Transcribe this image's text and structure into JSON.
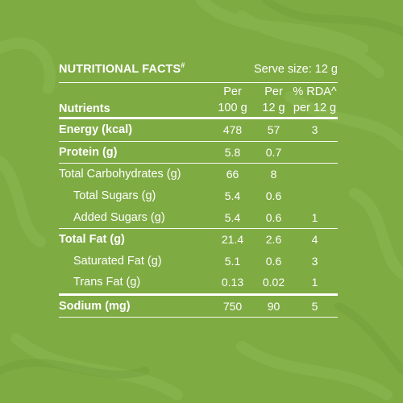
{
  "heading": "NUTRITIONAL FACTS",
  "heading_mark": "#",
  "serve_size": "Serve size: 12 g",
  "columns": {
    "nutrients": "Nutrients",
    "per100_l1": "Per",
    "per100_l2": "100 g",
    "per12_l1": "Per",
    "per12_l2": "12 g",
    "rda_l1": "% RDA^",
    "rda_l2": "per 12 g"
  },
  "rows": [
    {
      "name": "Energy (kcal)",
      "per100": "478",
      "per12": "57",
      "rda": "3"
    },
    {
      "name": "Protein (g)",
      "per100": "5.8",
      "per12": "0.7",
      "rda": ""
    },
    {
      "name": "Total Carbohydrates (g)",
      "per100": "66",
      "per12": "8",
      "rda": ""
    },
    {
      "name": "Total Sugars (g)",
      "per100": "5.4",
      "per12": "0.6",
      "rda": ""
    },
    {
      "name": "Added Sugars (g)",
      "per100": "5.4",
      "per12": "0.6",
      "rda": "1"
    },
    {
      "name": "Total Fat (g)",
      "per100": "21.4",
      "per12": "2.6",
      "rda": "4"
    },
    {
      "name": "Saturated Fat (g)",
      "per100": "5.1",
      "per12": "0.6",
      "rda": "3"
    },
    {
      "name": "Trans Fat (g)",
      "per100": "0.13",
      "per12": "0.02",
      "rda": "1"
    },
    {
      "name": "Sodium (mg)",
      "per100": "750",
      "per12": "90",
      "rda": "5"
    }
  ],
  "colors": {
    "background": "#7fab43",
    "text": "#ffffff"
  }
}
